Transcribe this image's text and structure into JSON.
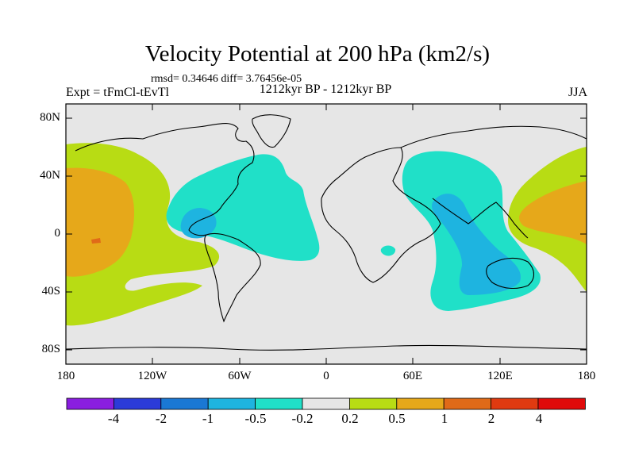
{
  "title": "Velocity Potential at 200 hPa (km2/s)",
  "stats": "rmsd= 0.34646 diff= 3.76456e-05",
  "experiment": "Expt = tFmCl-tEvTl",
  "period": "1212kyr BP - 1212kyr BP",
  "season": "JJA",
  "lat_ticks": [
    "80N",
    "40N",
    "0",
    "40S",
    "80S"
  ],
  "lon_ticks": [
    "180",
    "120W",
    "60W",
    "0",
    "60E",
    "120E",
    "180"
  ],
  "colorbar": {
    "labels": [
      "-4",
      "-2",
      "-1",
      "-0.5",
      "-0.2",
      "0.2",
      "0.5",
      "1",
      "2",
      "4"
    ],
    "colors": [
      "#8a1ee0",
      "#2b3bd8",
      "#1a78d4",
      "#1eb4e0",
      "#20e0c8",
      "#e6e6e6",
      "#b8dc14",
      "#e6a81a",
      "#e06a18",
      "#e03a10",
      "#e00a0a"
    ]
  }
}
